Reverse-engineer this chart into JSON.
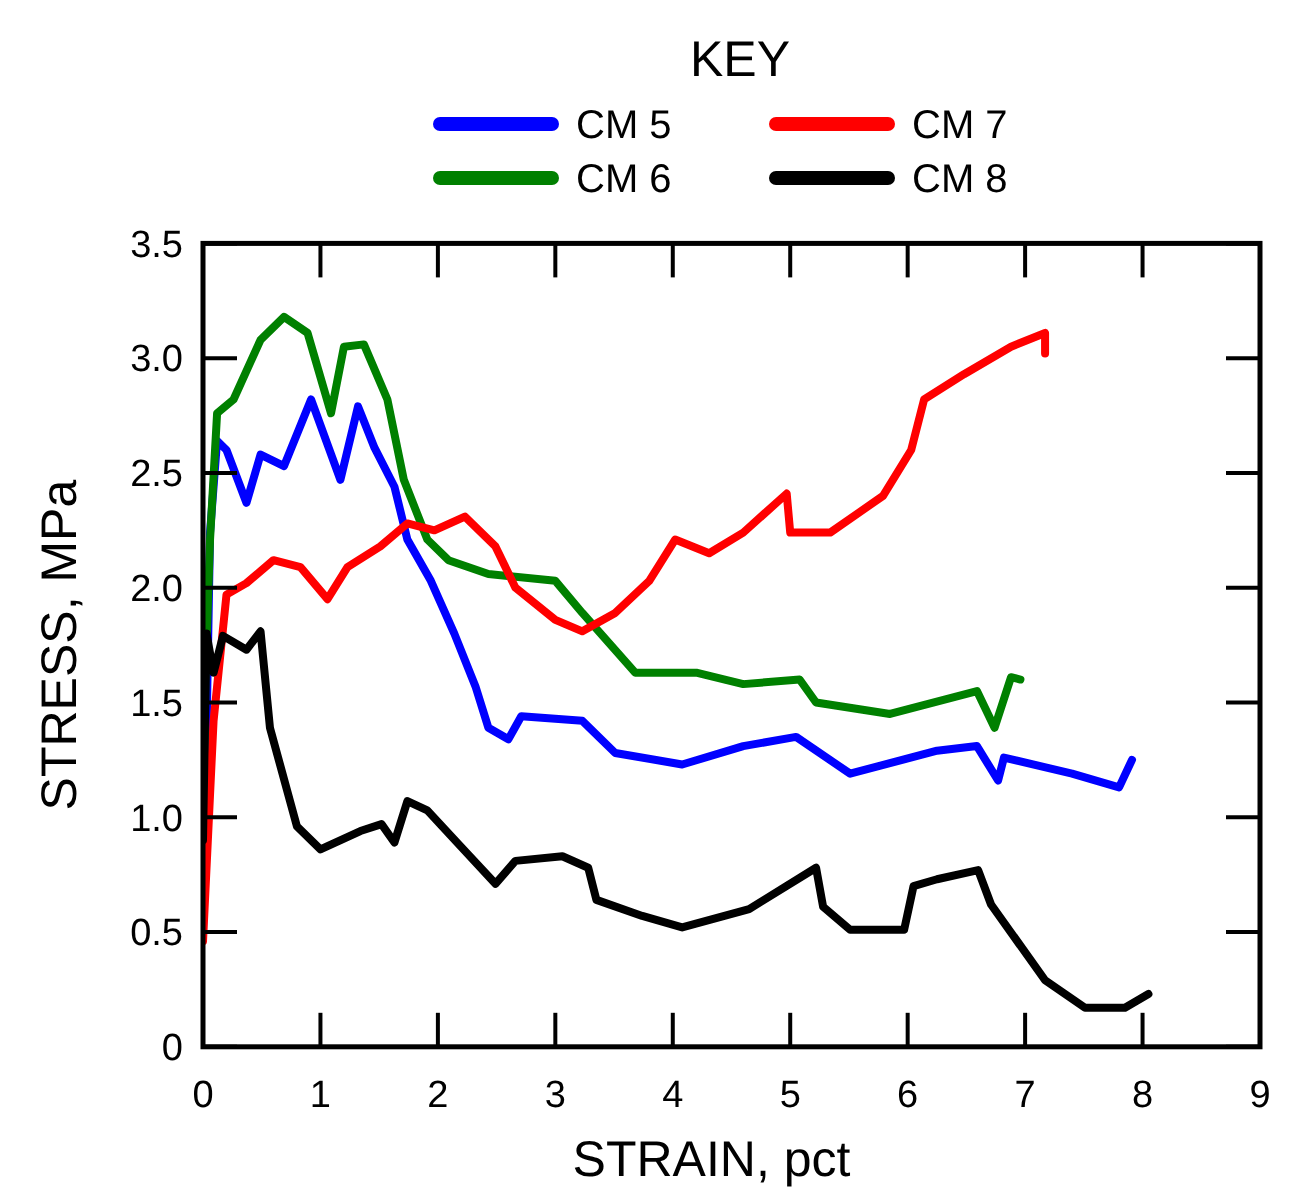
{
  "chart_data": {
    "type": "line",
    "legend_title": "KEY",
    "xlabel": "STRAIN, pct",
    "ylabel": "STRESS, MPa",
    "xlim": [
      0,
      9
    ],
    "xticks": [
      0,
      1,
      2,
      3,
      4,
      5,
      6,
      7,
      8,
      9
    ],
    "ylim": [
      0,
      3.5
    ],
    "yticks": [
      {
        "value": 0,
        "label": "0"
      },
      {
        "value": 0.5,
        "label": "0.5"
      },
      {
        "value": 1,
        "label": "1.0"
      },
      {
        "value": 1.5,
        "label": "1.5"
      },
      {
        "value": 2,
        "label": "2.0"
      },
      {
        "value": 2.5,
        "label": "2.5"
      },
      {
        "value": 3,
        "label": "3.0"
      },
      {
        "value": 3.5,
        "label": "3.5"
      }
    ],
    "grid": false,
    "legend": "top",
    "marker": "none",
    "line_style": "solid",
    "series": [
      {
        "name": "CM 5",
        "color": "#0000ff",
        "x": [
          0,
          0.06,
          0.12,
          0.2,
          0.37,
          0.49,
          0.69,
          0.92,
          1.17,
          1.32,
          1.46,
          1.63,
          1.74,
          1.94,
          2.14,
          2.32,
          2.43,
          2.6,
          2.71,
          3.23,
          3.51,
          4.08,
          4.6,
          5.05,
          5.51,
          6.25,
          6.59,
          6.77,
          6.82,
          7.4,
          7.8,
          7.91
        ],
        "values": [
          0.5,
          2.24,
          2.64,
          2.6,
          2.37,
          2.58,
          2.53,
          2.82,
          2.47,
          2.79,
          2.61,
          2.44,
          2.21,
          2.03,
          1.8,
          1.57,
          1.39,
          1.34,
          1.44,
          1.42,
          1.28,
          1.23,
          1.31,
          1.35,
          1.19,
          1.29,
          1.31,
          1.16,
          1.26,
          1.19,
          1.13,
          1.25
        ]
      },
      {
        "name": "CM 6",
        "color": "#008000",
        "x": [
          0,
          0.02,
          0.06,
          0.12,
          0.26,
          0.49,
          0.69,
          0.89,
          1.09,
          1.2,
          1.37,
          1.57,
          1.71,
          1.91,
          2.09,
          2.43,
          3.0,
          3.23,
          3.68,
          4.2,
          4.6,
          5.08,
          5.22,
          5.85,
          6.59,
          6.74,
          6.88,
          6.96
        ],
        "values": [
          0.7,
          1.6,
          2.21,
          2.76,
          2.82,
          3.08,
          3.18,
          3.11,
          2.76,
          3.05,
          3.06,
          2.82,
          2.47,
          2.21,
          2.12,
          2.06,
          2.03,
          1.89,
          1.63,
          1.63,
          1.58,
          1.6,
          1.5,
          1.45,
          1.55,
          1.39,
          1.61,
          1.6
        ]
      },
      {
        "name": "CM 7",
        "color": "#ff0000",
        "x": [
          0,
          0.09,
          0.2,
          0.37,
          0.6,
          0.83,
          1.06,
          1.23,
          1.51,
          1.74,
          1.97,
          2.23,
          2.49,
          2.66,
          3.0,
          3.23,
          3.51,
          3.8,
          4.02,
          4.31,
          4.6,
          4.97,
          5.0,
          5.34,
          5.79,
          6.03,
          6.14,
          6.48,
          6.88,
          7.17,
          7.17
        ],
        "values": [
          0.46,
          1.42,
          1.97,
          2.02,
          2.12,
          2.09,
          1.95,
          2.09,
          2.18,
          2.28,
          2.25,
          2.31,
          2.18,
          2.0,
          1.86,
          1.81,
          1.89,
          2.03,
          2.21,
          2.15,
          2.24,
          2.41,
          2.24,
          2.24,
          2.4,
          2.6,
          2.82,
          2.93,
          3.05,
          3.11,
          3.02
        ]
      },
      {
        "name": "CM 8",
        "color": "#000000",
        "x": [
          0,
          0.03,
          0.09,
          0.17,
          0.37,
          0.49,
          0.57,
          0.8,
          1.0,
          1.34,
          1.52,
          1.63,
          1.74,
          1.91,
          2.2,
          2.49,
          2.66,
          3.06,
          3.28,
          3.35,
          3.74,
          4.08,
          4.65,
          5.22,
          5.28,
          5.51,
          5.97,
          6.05,
          6.25,
          6.6,
          6.71,
          7.17,
          7.51,
          7.85,
          8.05
        ],
        "values": [
          0.9,
          1.8,
          1.63,
          1.79,
          1.73,
          1.81,
          1.39,
          0.96,
          0.86,
          0.94,
          0.97,
          0.89,
          1.07,
          1.03,
          0.87,
          0.71,
          0.81,
          0.83,
          0.78,
          0.64,
          0.57,
          0.52,
          0.6,
          0.78,
          0.61,
          0.51,
          0.51,
          0.7,
          0.73,
          0.77,
          0.62,
          0.29,
          0.17,
          0.17,
          0.23
        ]
      }
    ]
  }
}
